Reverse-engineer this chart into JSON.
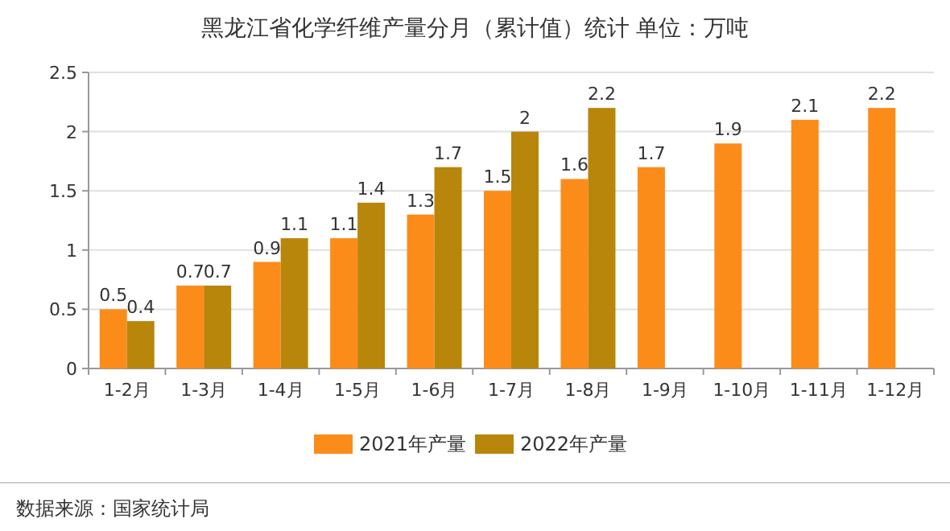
{
  "chart_data": {
    "type": "bar",
    "title": "黑龙江省化学纤维产量分月（累计值）统计  单位：万吨",
    "categories": [
      "1-2月",
      "1-3月",
      "1-4月",
      "1-5月",
      "1-6月",
      "1-7月",
      "1-8月",
      "1-9月",
      "1-10月",
      "1-11月",
      "1-12月"
    ],
    "series": [
      {
        "name": "2021年产量",
        "color": "#fb8c1a",
        "values": [
          0.5,
          0.7,
          0.9,
          1.1,
          1.3,
          1.5,
          1.6,
          1.7,
          1.9,
          2.1,
          2.2
        ]
      },
      {
        "name": "2022年产量",
        "color": "#b8860b",
        "values": [
          0.4,
          0.7,
          1.1,
          1.4,
          1.7,
          2,
          2.2,
          null,
          null,
          null,
          null
        ]
      }
    ],
    "ylim": [
      0,
      2.5
    ],
    "yticks": [
      0,
      0.5,
      1,
      1.5,
      2,
      2.5
    ],
    "grid": "y",
    "legend": "bottom",
    "data_labels": true,
    "annotations": [
      "数据来源：国家统计局"
    ]
  }
}
